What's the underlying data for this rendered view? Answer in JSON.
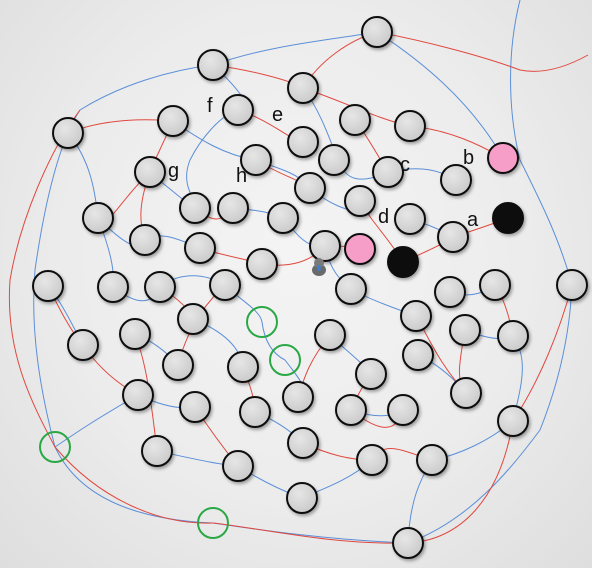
{
  "game": {
    "title": "",
    "colors": {
      "background": "#ececec",
      "blue_path": "#5b8fd8",
      "red_path": "#e0493f",
      "node_fill": "#d3d3d3",
      "node_stroke": "#111111",
      "pink": "#f79ec8",
      "black": "#111111",
      "green_ring": "#2aa845"
    },
    "marker_icon": "robot-icon",
    "labels": [
      "a",
      "b",
      "c",
      "d",
      "e",
      "f",
      "g",
      "h"
    ]
  }
}
